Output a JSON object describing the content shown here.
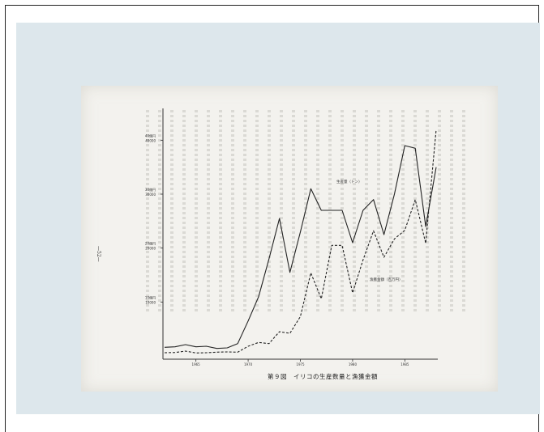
{
  "chart_data": {
    "type": "line",
    "title": "第９図　イリコの生産数量と漁獲金額",
    "page_marker": "—52—",
    "x_ticks": [
      "1965",
      "1970",
      "1975",
      "1980",
      "1985"
    ],
    "y_ticks_left": [
      {
        "top": "10億円",
        "bottom": "10000"
      },
      {
        "top": "20億円",
        "bottom": "20000"
      },
      {
        "top": "30億円",
        "bottom": "30000"
      },
      {
        "top": "40億円",
        "bottom": "40000"
      }
    ],
    "ylim": [
      0,
      45000
    ],
    "xlim": [
      1962,
      1988
    ],
    "series": [
      {
        "name": "生産量（トン）",
        "style": "solid",
        "values": [
          [
            1962,
            1600
          ],
          [
            1963,
            1700
          ],
          [
            1964,
            2100
          ],
          [
            1965,
            1700
          ],
          [
            1966,
            1800
          ],
          [
            1967,
            1400
          ],
          [
            1968,
            1500
          ],
          [
            1969,
            2300
          ],
          [
            1970,
            6500
          ],
          [
            1971,
            11000
          ],
          [
            1972,
            18000
          ],
          [
            1973,
            25500
          ],
          [
            1974,
            15500
          ],
          [
            1975,
            23000
          ],
          [
            1976,
            31000
          ],
          [
            1977,
            27000
          ],
          [
            1978,
            27000
          ],
          [
            1979,
            27000
          ],
          [
            1980,
            21000
          ],
          [
            1981,
            27000
          ],
          [
            1982,
            29000
          ],
          [
            1983,
            22500
          ],
          [
            1984,
            30000
          ],
          [
            1985,
            39000
          ],
          [
            1986,
            38500
          ],
          [
            1987,
            24000
          ],
          [
            1988,
            35000
          ]
        ]
      },
      {
        "name": "漁獲金額（百万円）",
        "style": "dashed",
        "values": [
          [
            1962,
            600
          ],
          [
            1963,
            650
          ],
          [
            1964,
            900
          ],
          [
            1965,
            550
          ],
          [
            1966,
            600
          ],
          [
            1967,
            700
          ],
          [
            1968,
            750
          ],
          [
            1969,
            700
          ],
          [
            1970,
            1800
          ],
          [
            1971,
            2500
          ],
          [
            1972,
            2300
          ],
          [
            1973,
            4500
          ],
          [
            1974,
            4200
          ],
          [
            1975,
            7300
          ],
          [
            1976,
            15400
          ],
          [
            1977,
            10600
          ],
          [
            1978,
            20500
          ],
          [
            1979,
            20500
          ],
          [
            1980,
            11700
          ],
          [
            1981,
            17800
          ],
          [
            1982,
            23200
          ],
          [
            1983,
            18300
          ],
          [
            1984,
            21700
          ],
          [
            1985,
            23300
          ],
          [
            1986,
            29000
          ],
          [
            1987,
            20900
          ],
          [
            1988,
            42000
          ]
        ]
      }
    ]
  }
}
